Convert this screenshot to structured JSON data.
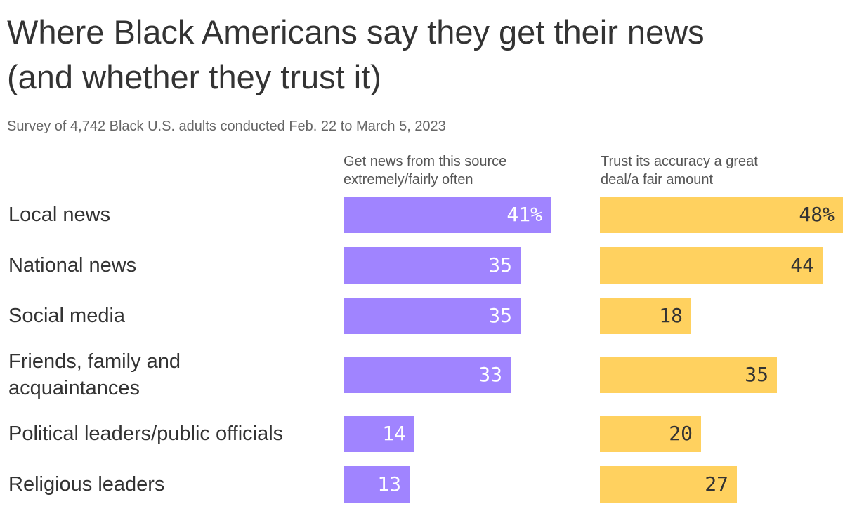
{
  "title_line1": "Where Black Americans say they get their news",
  "title_line2": "(and whether they trust it)",
  "subtitle": "Survey of 4,742 Black U.S. adults conducted Feb. 22 to March 5, 2023",
  "chart_data": {
    "type": "bar",
    "orientation": "horizontal",
    "colors": {
      "get_news": "#a084ff",
      "trust": "#ffd15f"
    },
    "series": [
      {
        "key": "get_news",
        "header": [
          "Get news from this source",
          "extremely/fairly often"
        ],
        "values": [
          41,
          35,
          35,
          33,
          14,
          13
        ],
        "display": [
          "41%",
          "35",
          "35",
          "33",
          "14",
          "13"
        ]
      },
      {
        "key": "trust",
        "header": [
          "Trust its accuracy a great",
          "deal/a fair amount"
        ],
        "values": [
          48,
          44,
          18,
          35,
          20,
          27
        ],
        "display": [
          "48%",
          "44",
          "18",
          "35",
          "20",
          "27"
        ]
      }
    ],
    "categories": [
      [
        "Local news"
      ],
      [
        "National news"
      ],
      [
        "Social media"
      ],
      [
        "Friends, family and",
        "acquaintances"
      ],
      [
        "Political leaders/public officials"
      ],
      [
        "Religious leaders"
      ]
    ]
  }
}
